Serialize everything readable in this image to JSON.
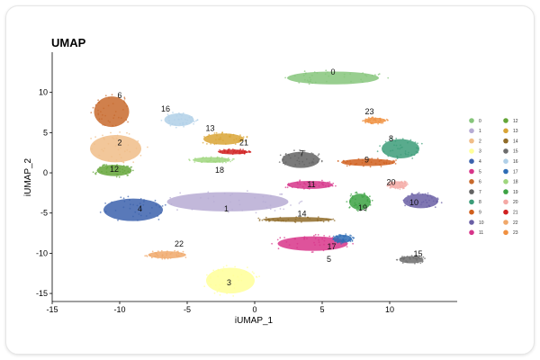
{
  "chart_data": {
    "type": "scatter",
    "title": "UMAP",
    "xlabel": "iUMAP_1",
    "ylabel": "iUMAP_2",
    "xlim": [
      -15,
      15
    ],
    "ylim": [
      -16,
      15
    ],
    "xticks": [
      -15,
      -10,
      -5,
      0,
      5,
      10
    ],
    "yticks": [
      10,
      5,
      0,
      -5,
      -10,
      -15
    ],
    "legend_position": "right",
    "clusters": [
      {
        "name": "0",
        "color": "#86c57b",
        "x": 5.8,
        "y": 11.8,
        "rx": 3.4,
        "ry": 0.8
      },
      {
        "name": "1",
        "color": "#b7acd4",
        "x": -2.0,
        "y": -3.6,
        "rx": 4.5,
        "ry": 1.2
      },
      {
        "name": "2",
        "color": "#f0bd88",
        "x": -10.3,
        "y": 3.0,
        "rx": 1.9,
        "ry": 1.7
      },
      {
        "name": "3",
        "color": "#ffff99",
        "x": -1.8,
        "y": -13.4,
        "rx": 1.8,
        "ry": 1.6
      },
      {
        "name": "4",
        "color": "#3c62ad",
        "x": -9.0,
        "y": -4.6,
        "rx": 2.2,
        "ry": 1.4
      },
      {
        "name": "5",
        "color": "#d8358a",
        "x": 4.3,
        "y": -8.8,
        "rx": 2.6,
        "ry": 0.9
      },
      {
        "name": "6",
        "color": "#c86a2d",
        "x": -10.6,
        "y": 7.6,
        "rx": 1.3,
        "ry": 1.9
      },
      {
        "name": "7",
        "color": "#636363",
        "x": 3.4,
        "y": 1.6,
        "rx": 1.4,
        "ry": 1.0
      },
      {
        "name": "8",
        "color": "#3c9c79",
        "x": 10.8,
        "y": 3.0,
        "rx": 1.4,
        "ry": 1.2
      },
      {
        "name": "9",
        "color": "#d05f1d",
        "x": 8.4,
        "y": 1.3,
        "rx": 2.0,
        "ry": 0.45
      },
      {
        "name": "10",
        "color": "#6a5fa5",
        "x": 12.3,
        "y": -3.5,
        "rx": 1.3,
        "ry": 0.9
      },
      {
        "name": "11",
        "color": "#d6358a",
        "x": 4.1,
        "y": -1.5,
        "rx": 1.7,
        "ry": 0.5
      },
      {
        "name": "12",
        "color": "#63a537",
        "x": -10.4,
        "y": 0.3,
        "rx": 1.3,
        "ry": 0.7
      },
      {
        "name": "13",
        "color": "#d9a435",
        "x": -2.3,
        "y": 4.2,
        "rx": 1.5,
        "ry": 0.7
      },
      {
        "name": "14",
        "color": "#8f6b28",
        "x": 3.2,
        "y": -5.8,
        "rx": 2.6,
        "ry": 0.3
      },
      {
        "name": "15",
        "color": "#6c6c6c",
        "x": 11.6,
        "y": -10.8,
        "rx": 0.9,
        "ry": 0.45
      },
      {
        "name": "16",
        "color": "#b0d0e8",
        "x": -5.6,
        "y": 6.6,
        "rx": 1.1,
        "ry": 0.8
      },
      {
        "name": "17",
        "color": "#2d6cb5",
        "x": 6.5,
        "y": -8.2,
        "rx": 0.7,
        "ry": 0.5
      },
      {
        "name": "18",
        "color": "#9fd67e",
        "x": -3.2,
        "y": 1.6,
        "rx": 1.4,
        "ry": 0.35
      },
      {
        "name": "19",
        "color": "#3ca243",
        "x": 7.8,
        "y": -3.6,
        "rx": 0.8,
        "ry": 1.0
      },
      {
        "name": "20",
        "color": "#f4a9a5",
        "x": 10.6,
        "y": -1.5,
        "rx": 0.7,
        "ry": 0.45
      },
      {
        "name": "21",
        "color": "#d02020",
        "x": -1.6,
        "y": 2.6,
        "rx": 1.1,
        "ry": 0.3
      },
      {
        "name": "22",
        "color": "#f0a86a",
        "x": -6.5,
        "y": -10.2,
        "rx": 1.4,
        "ry": 0.45
      },
      {
        "name": "23",
        "color": "#f09040",
        "x": 8.9,
        "y": 6.5,
        "rx": 0.8,
        "ry": 0.35
      }
    ],
    "labels": [
      {
        "text": "0",
        "x": 5.8,
        "y": 12.2
      },
      {
        "text": "1",
        "x": -2.1,
        "y": -4.8
      },
      {
        "text": "2",
        "x": -10.0,
        "y": 3.4
      },
      {
        "text": "3",
        "x": -1.9,
        "y": -14.0
      },
      {
        "text": "4",
        "x": -8.5,
        "y": -4.8
      },
      {
        "text": "5",
        "x": 5.5,
        "y": -11.1
      },
      {
        "text": "6",
        "x": -10.0,
        "y": 9.3
      },
      {
        "text": "7",
        "x": 3.5,
        "y": 2.1
      },
      {
        "text": "8",
        "x": 10.1,
        "y": 3.9
      },
      {
        "text": "9",
        "x": 8.3,
        "y": 1.3
      },
      {
        "text": "10",
        "x": 11.8,
        "y": -4.0
      },
      {
        "text": "11",
        "x": 4.2,
        "y": -1.8
      },
      {
        "text": "12",
        "x": -10.4,
        "y": 0.1
      },
      {
        "text": "13",
        "x": -3.3,
        "y": 5.2
      },
      {
        "text": "14",
        "x": 3.5,
        "y": -5.4
      },
      {
        "text": "15",
        "x": 12.1,
        "y": -10.4
      },
      {
        "text": "16",
        "x": -6.6,
        "y": 7.6
      },
      {
        "text": "17",
        "x": 5.7,
        "y": -9.5
      },
      {
        "text": "18",
        "x": -2.6,
        "y": 0.0
      },
      {
        "text": "19",
        "x": 8.0,
        "y": -4.7
      },
      {
        "text": "20",
        "x": 10.1,
        "y": -1.5
      },
      {
        "text": "21",
        "x": -0.8,
        "y": 3.4
      },
      {
        "text": "22",
        "x": -5.6,
        "y": -9.2
      },
      {
        "text": "23",
        "x": 8.5,
        "y": 7.3
      }
    ],
    "legend": [
      {
        "text": "0",
        "color": "#86c57b"
      },
      {
        "text": "1",
        "color": "#b7acd4"
      },
      {
        "text": "2",
        "color": "#f0bd88"
      },
      {
        "text": "3",
        "color": "#ffff99"
      },
      {
        "text": "4",
        "color": "#3c62ad"
      },
      {
        "text": "5",
        "color": "#d8358a"
      },
      {
        "text": "6",
        "color": "#c86a2d"
      },
      {
        "text": "7",
        "color": "#636363"
      },
      {
        "text": "8",
        "color": "#3c9c79"
      },
      {
        "text": "9",
        "color": "#d05f1d"
      },
      {
        "text": "10",
        "color": "#6a5fa5"
      },
      {
        "text": "11",
        "color": "#d6358a"
      },
      {
        "text": "12",
        "color": "#63a537"
      },
      {
        "text": "13",
        "color": "#d9a435"
      },
      {
        "text": "14",
        "color": "#8f6b28"
      },
      {
        "text": "15",
        "color": "#6c6c6c"
      },
      {
        "text": "16",
        "color": "#b0d0e8"
      },
      {
        "text": "17",
        "color": "#2d6cb5"
      },
      {
        "text": "18",
        "color": "#9fd67e"
      },
      {
        "text": "19",
        "color": "#3ca243"
      },
      {
        "text": "20",
        "color": "#f4a9a5"
      },
      {
        "text": "21",
        "color": "#d02020"
      },
      {
        "text": "22",
        "color": "#f0a86a"
      },
      {
        "text": "23",
        "color": "#f09040"
      }
    ]
  }
}
